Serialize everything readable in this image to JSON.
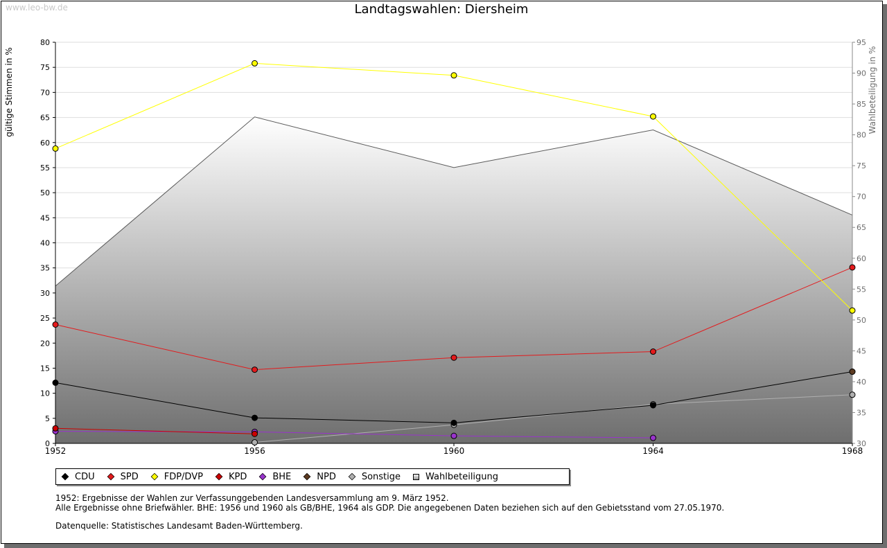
{
  "watermark": "www.leo-bw.de",
  "chart_data": {
    "type": "line",
    "title": "Landtagswahlen: Diersheim",
    "ylabel": "gültige Stimmen in %",
    "y2label": "Wahlbeteiligung in %",
    "ylim": [
      0,
      80
    ],
    "y2lim": [
      30,
      95
    ],
    "yticks": [
      0,
      5,
      10,
      15,
      20,
      25,
      30,
      35,
      40,
      45,
      50,
      55,
      60,
      65,
      70,
      75,
      80
    ],
    "y2ticks": [
      30,
      35,
      40,
      45,
      50,
      55,
      60,
      65,
      70,
      75,
      80,
      85,
      90,
      95
    ],
    "x": [
      1952,
      1956,
      1960,
      1964,
      1968
    ],
    "grid": true,
    "legend_position": "bottom-left",
    "series": [
      {
        "name": "CDU",
        "color": "#000000",
        "values": [
          12.1,
          5.1,
          4.1,
          7.6,
          14.3
        ]
      },
      {
        "name": "SPD",
        "color": "#e31a1c",
        "values": [
          23.7,
          14.7,
          17.1,
          18.3,
          35.1
        ]
      },
      {
        "name": "FDP/DVP",
        "color": "#ffff00",
        "values": [
          58.8,
          75.8,
          73.4,
          65.2,
          26.5
        ]
      },
      {
        "name": "KPD",
        "color": "#cc0000",
        "values": [
          3.0,
          1.9,
          null,
          null,
          null
        ]
      },
      {
        "name": "BHE",
        "color": "#9933cc",
        "values": [
          2.4,
          2.3,
          1.5,
          1.1,
          null
        ]
      },
      {
        "name": "NPD",
        "color": "#5c3a21",
        "values": [
          null,
          null,
          null,
          null,
          14.3
        ]
      },
      {
        "name": "Sonstige",
        "color": "#b0b0b0",
        "values": [
          null,
          0.2,
          3.7,
          7.8,
          9.7
        ]
      }
    ],
    "turnout": {
      "name": "Wahlbeteiligung",
      "axis": "right",
      "values": [
        55.5,
        82.9,
        74.7,
        80.8,
        67.0
      ]
    }
  },
  "notes": [
    "1952: Ergebnisse der Wahlen zur Verfassunggebenden Landesversammlung am 9. März 1952.",
    "Alle Ergebnisse ohne Briefwähler. BHE: 1956 und 1960 als GB/BHE, 1964 als GDP. Die angegebenen Daten beziehen sich auf den Gebietsstand vom 27.05.1970."
  ],
  "source": "Datenquelle: Statistisches Landesamt Baden-Württemberg."
}
